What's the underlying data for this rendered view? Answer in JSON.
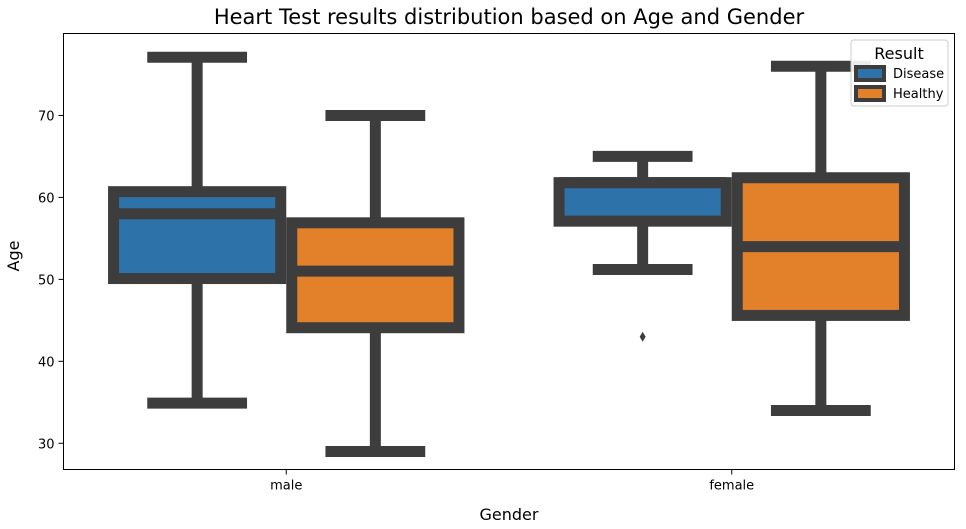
{
  "chart_data": {
    "type": "box",
    "title": "Heart Test results distribution based on Age and Gender",
    "xlabel": "Gender",
    "ylabel": "Age",
    "categories": [
      "male",
      "female"
    ],
    "ylim": [
      26.8,
      80
    ],
    "yticks": [
      30,
      40,
      50,
      60,
      70
    ],
    "grid": false,
    "legend": {
      "title": "Result",
      "position": "top-right"
    },
    "colors": {
      "Disease": "#2d72a8",
      "Healthy": "#e3812b",
      "edge": "#3d3d3d"
    },
    "series": [
      {
        "name": "Disease",
        "boxes": [
          {
            "category": "male",
            "whisker_low": 34.9,
            "q1": 50.1,
            "median": 58,
            "q3": 60.7,
            "whisker_high": 77.1,
            "outliers": []
          },
          {
            "category": "female",
            "whisker_low": 51.2,
            "q1": 57.1,
            "median": 61.8,
            "q3": 61.8,
            "whisker_high": 65,
            "outliers": [
              43
            ]
          }
        ]
      },
      {
        "name": "Healthy",
        "boxes": [
          {
            "category": "male",
            "whisker_low": 29,
            "q1": 44.1,
            "median": 51,
            "q3": 56.9,
            "whisker_high": 70,
            "outliers": []
          },
          {
            "category": "female",
            "whisker_low": 34,
            "q1": 45.6,
            "median": 54,
            "q3": 62.4,
            "whisker_high": 76,
            "outliers": []
          }
        ]
      }
    ]
  }
}
